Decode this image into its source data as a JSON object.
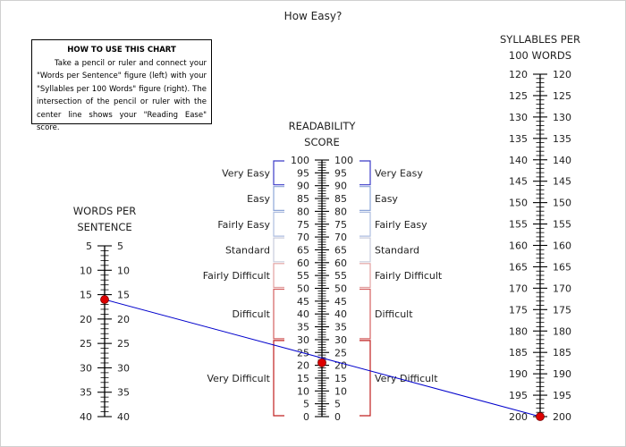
{
  "chart_data": {
    "type": "nomogram",
    "title": "How Easy?",
    "instructions": {
      "heading": "HOW TO USE THIS CHART",
      "body": "Take a pencil or ruler and connect your \"Words per Sentence\" figure (left) with your \"Syllables per 100 Words\" figure (right). The intersection of the pencil or ruler with the center line shows your \"Reading Ease\" score."
    },
    "scales": [
      {
        "id": "words",
        "label_lines": [
          "WORDS PER",
          "SENTENCE"
        ],
        "range": [
          5,
          40
        ],
        "tick_labels": [
          5,
          10,
          15,
          20,
          25,
          30,
          35,
          40
        ],
        "reversed": false
      },
      {
        "id": "readability",
        "label_lines": [
          "READABILITY",
          "SCORE"
        ],
        "range": [
          100,
          0
        ],
        "tick_labels": [
          100,
          95,
          90,
          85,
          80,
          75,
          70,
          65,
          60,
          55,
          50,
          45,
          40,
          35,
          30,
          25,
          20,
          15,
          10,
          5,
          0
        ],
        "reversed": true
      },
      {
        "id": "syllables",
        "label_lines": [
          "SYLLABLES PER",
          "100 WORDS"
        ],
        "range": [
          120,
          200
        ],
        "tick_labels": [
          120,
          125,
          130,
          135,
          140,
          145,
          150,
          155,
          160,
          165,
          170,
          175,
          180,
          185,
          190,
          195,
          200
        ],
        "reversed": false
      }
    ],
    "bands": [
      {
        "label": "Very Easy",
        "from": 90,
        "to": 100,
        "color": "#3b3bc8"
      },
      {
        "label": "Easy",
        "from": 80,
        "to": 90,
        "color": "#8ea6d8"
      },
      {
        "label": "Fairly Easy",
        "from": 70,
        "to": 80,
        "color": "#aebee0"
      },
      {
        "label": "Standard",
        "from": 60,
        "to": 70,
        "color": "#c9cbdc"
      },
      {
        "label": "Fairly Difficult",
        "from": 50,
        "to": 60,
        "color": "#e2a0a0"
      },
      {
        "label": "Difficult",
        "from": 30,
        "to": 50,
        "color": "#d46060"
      },
      {
        "label": "Very Difficult",
        "from": 0,
        "to": 30,
        "color": "#c02020"
      }
    ],
    "reading": {
      "words_per_sentence": 16,
      "syllables_per_100_words": 200,
      "readability_score": 21,
      "line_color": "#0000cc",
      "marker_color": "#dd0000"
    }
  }
}
